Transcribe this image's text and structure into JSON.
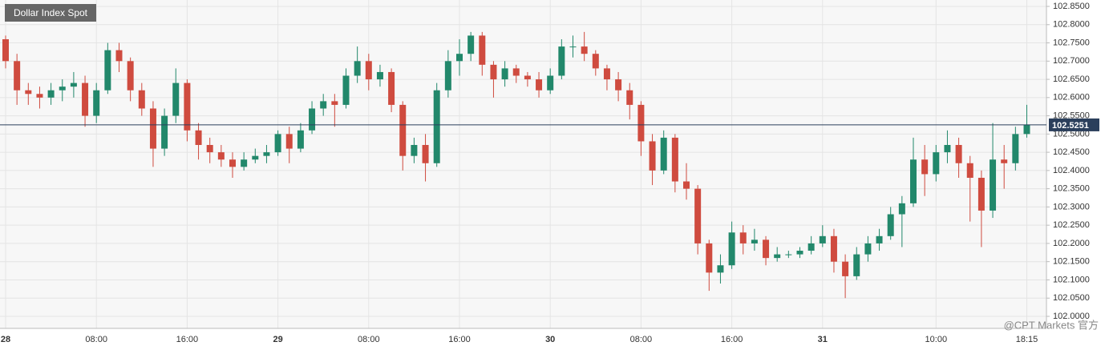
{
  "chart_data": {
    "type": "candlestick",
    "title": "Dollar Index Spot",
    "watermark": "@CPT Markets 官方",
    "categories": [
      "28",
      null,
      null,
      null,
      null,
      null,
      null,
      null,
      "08:00",
      null,
      null,
      null,
      null,
      null,
      null,
      null,
      "16:00",
      null,
      null,
      null,
      null,
      null,
      null,
      null,
      "29",
      null,
      null,
      null,
      null,
      null,
      null,
      null,
      "08:00",
      null,
      null,
      null,
      null,
      null,
      null,
      null,
      "16:00",
      null,
      null,
      null,
      null,
      null,
      null,
      null,
      "30",
      null,
      null,
      null,
      null,
      null,
      null,
      null,
      "08:00",
      null,
      null,
      null,
      null,
      null,
      null,
      null,
      "16:00",
      null,
      null,
      null,
      null,
      null,
      null,
      null,
      "31",
      null,
      null,
      null,
      null,
      null,
      null,
      null,
      null,
      null,
      "10:00",
      null,
      null,
      null,
      null,
      null,
      null,
      null,
      "18:15"
    ],
    "open": [
      102.76,
      102.7,
      102.62,
      102.61,
      102.6,
      102.62,
      102.63,
      102.64,
      102.55,
      102.62,
      102.73,
      102.7,
      102.62,
      102.57,
      102.46,
      102.55,
      102.64,
      102.51,
      102.47,
      102.45,
      102.43,
      102.41,
      102.43,
      102.44,
      102.45,
      102.5,
      102.46,
      102.51,
      102.57,
      102.59,
      102.58,
      102.66,
      102.7,
      102.65,
      102.67,
      102.58,
      102.44,
      102.47,
      102.42,
      102.62,
      102.7,
      102.72,
      102.77,
      102.69,
      102.65,
      102.68,
      102.66,
      102.65,
      102.62,
      102.66,
      102.74,
      102.74,
      102.72,
      102.68,
      102.65,
      102.62,
      102.58,
      102.48,
      102.4,
      102.49,
      102.37,
      102.35,
      102.2,
      102.12,
      102.14,
      102.23,
      102.2,
      102.21,
      102.16,
      102.17,
      102.17,
      102.18,
      102.2,
      102.22,
      102.15,
      102.11,
      102.17,
      102.2,
      102.22,
      102.28,
      102.31,
      102.43,
      102.39,
      102.45,
      102.47,
      102.42,
      102.38,
      102.29,
      102.43,
      102.42,
      102.5
    ],
    "high": [
      102.77,
      102.72,
      102.64,
      102.63,
      102.64,
      102.65,
      102.67,
      102.66,
      102.64,
      102.75,
      102.75,
      102.71,
      102.64,
      102.59,
      102.57,
      102.68,
      102.65,
      102.53,
      102.49,
      102.47,
      102.45,
      102.45,
      102.46,
      102.47,
      102.51,
      102.52,
      102.53,
      102.59,
      102.61,
      102.61,
      102.68,
      102.74,
      102.72,
      102.69,
      102.68,
      102.59,
      102.49,
      102.5,
      102.64,
      102.73,
      102.76,
      102.78,
      102.78,
      102.7,
      102.7,
      102.69,
      102.67,
      102.67,
      102.68,
      102.76,
      102.77,
      102.78,
      102.73,
      102.69,
      102.67,
      102.64,
      102.59,
      102.5,
      102.51,
      102.5,
      102.42,
      102.36,
      102.21,
      102.17,
      102.26,
      102.25,
      102.24,
      102.22,
      102.19,
      102.18,
      102.19,
      102.22,
      102.25,
      102.24,
      102.17,
      102.19,
      102.22,
      102.24,
      102.3,
      102.33,
      102.49,
      102.47,
      102.47,
      102.51,
      102.49,
      102.44,
      102.4,
      102.53,
      102.47,
      102.52,
      102.58
    ],
    "low": [
      102.68,
      102.58,
      102.58,
      102.57,
      102.58,
      102.59,
      102.6,
      102.52,
      102.53,
      102.61,
      102.67,
      102.59,
      102.55,
      102.41,
      102.44,
      102.53,
      102.48,
      102.43,
      102.42,
      102.41,
      102.38,
      102.4,
      102.42,
      102.42,
      102.44,
      102.42,
      102.45,
      102.5,
      102.55,
      102.52,
      102.57,
      102.64,
      102.62,
      102.63,
      102.56,
      102.4,
      102.42,
      102.37,
      102.41,
      102.6,
      102.66,
      102.7,
      102.66,
      102.6,
      102.63,
      102.64,
      102.63,
      102.6,
      102.61,
      102.65,
      102.71,
      102.7,
      102.66,
      102.62,
      102.59,
      102.54,
      102.44,
      102.36,
      102.39,
      102.34,
      102.32,
      102.17,
      102.07,
      102.09,
      102.13,
      102.17,
      102.18,
      102.14,
      102.15,
      102.16,
      102.16,
      102.17,
      102.19,
      102.12,
      102.05,
      102.1,
      102.15,
      102.18,
      102.21,
      102.19,
      102.3,
      102.33,
      102.37,
      102.42,
      102.38,
      102.26,
      102.19,
      102.27,
      102.35,
      102.4,
      102.49
    ],
    "close": [
      102.7,
      102.62,
      102.61,
      102.6,
      102.62,
      102.63,
      102.64,
      102.55,
      102.62,
      102.73,
      102.7,
      102.62,
      102.57,
      102.46,
      102.55,
      102.64,
      102.51,
      102.47,
      102.45,
      102.43,
      102.41,
      102.43,
      102.44,
      102.45,
      102.5,
      102.46,
      102.51,
      102.57,
      102.59,
      102.58,
      102.66,
      102.7,
      102.65,
      102.67,
      102.58,
      102.44,
      102.47,
      102.42,
      102.62,
      102.7,
      102.72,
      102.77,
      102.69,
      102.65,
      102.68,
      102.66,
      102.65,
      102.62,
      102.66,
      102.74,
      102.74,
      102.72,
      102.68,
      102.65,
      102.62,
      102.58,
      102.48,
      102.4,
      102.49,
      102.37,
      102.35,
      102.2,
      102.12,
      102.14,
      102.23,
      102.2,
      102.21,
      102.16,
      102.17,
      102.17,
      102.18,
      102.2,
      102.22,
      102.15,
      102.11,
      102.17,
      102.2,
      102.22,
      102.28,
      102.31,
      102.43,
      102.39,
      102.45,
      102.47,
      102.42,
      102.38,
      102.29,
      102.43,
      102.42,
      102.5,
      102.5251
    ],
    "up_color": "#22886b",
    "down_color": "#cf4b3f",
    "last_price_color": "#2b3f5c",
    "ylim": [
      101.967,
      102.8676
    ],
    "yticks": [
      {
        "value": 102.0,
        "label": "102.0000"
      },
      {
        "value": 102.05,
        "label": "102.0500"
      },
      {
        "value": 102.1,
        "label": "102.1000"
      },
      {
        "value": 102.15,
        "label": "102.1500"
      },
      {
        "value": 102.2,
        "label": "102.2000"
      },
      {
        "value": 102.25,
        "label": "102.2500"
      },
      {
        "value": 102.3,
        "label": "102.3000"
      },
      {
        "value": 102.35,
        "label": "102.3500"
      },
      {
        "value": 102.4,
        "label": "102.4000"
      },
      {
        "value": 102.45,
        "label": "102.4500"
      },
      {
        "value": 102.5,
        "label": "102.5000"
      },
      {
        "value": 102.55,
        "label": "102.5500"
      },
      {
        "value": 102.6,
        "label": "102.6000"
      },
      {
        "value": 102.65,
        "label": "102.6500"
      },
      {
        "value": 102.7,
        "label": "102.7000"
      },
      {
        "value": 102.75,
        "label": "102.7500"
      },
      {
        "value": 102.8,
        "label": "102.8000"
      },
      {
        "value": 102.85,
        "label": "102.8500"
      }
    ],
    "grid": true
  }
}
